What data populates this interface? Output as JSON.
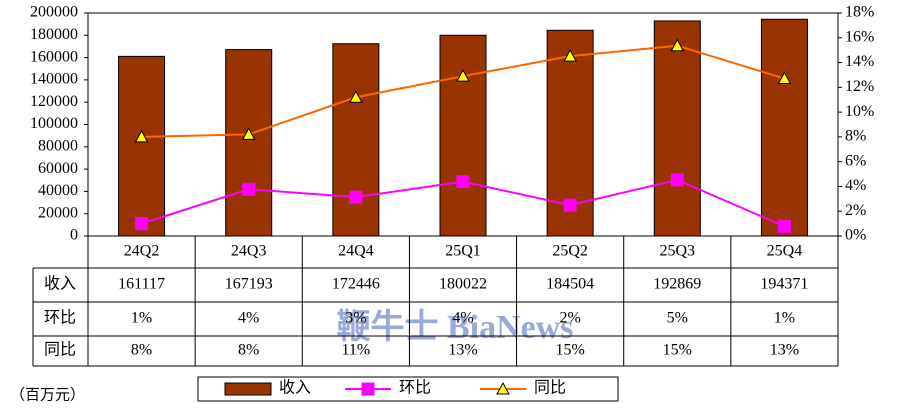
{
  "chart_data": {
    "type": "bar",
    "unit_note": "（百万元）",
    "watermark": "鞭牛士 BiaNews",
    "categories": [
      "24Q2",
      "24Q3",
      "24Q4",
      "25Q1",
      "25Q2",
      "25Q3",
      "25Q4"
    ],
    "series": [
      {
        "name": "收入",
        "type": "bar",
        "color": "#993300",
        "values": [
          161117,
          167193,
          172446,
          180022,
          184504,
          192869,
          194371
        ]
      },
      {
        "name": "环比",
        "type": "line",
        "marker": "square",
        "axis": "y2",
        "color": "#ff00ff",
        "marker_color": "#ff00ff",
        "values": [
          1.0,
          3.77,
          3.14,
          4.39,
          2.49,
          4.53,
          0.78
        ],
        "value_labels": [
          "1%",
          "4%",
          "3%",
          "4%",
          "2%",
          "5%",
          "1%"
        ]
      },
      {
        "name": "同比",
        "type": "line",
        "marker": "triangle",
        "axis": "y2",
        "color": "#ff6600",
        "marker_color": "#ffff00",
        "values": [
          8.0,
          8.2,
          11.2,
          12.9,
          14.52,
          15.36,
          12.71
        ],
        "value_labels": [
          "8%",
          "8%",
          "11%",
          "13%",
          "15%",
          "15%",
          "13%"
        ]
      }
    ],
    "ylim": [
      0,
      200000
    ],
    "yticks": [
      0,
      20000,
      40000,
      60000,
      80000,
      100000,
      120000,
      140000,
      160000,
      180000,
      200000
    ],
    "y2lim": [
      0,
      18
    ],
    "y2ticks": [
      {
        "value": 0,
        "label": "0%"
      },
      {
        "value": 2,
        "label": "2%"
      },
      {
        "value": 4,
        "label": "4%"
      },
      {
        "value": 6,
        "label": "6%"
      },
      {
        "value": 8,
        "label": "8%"
      },
      {
        "value": 10,
        "label": "10%"
      },
      {
        "value": 12,
        "label": "12%"
      },
      {
        "value": 14,
        "label": "14%"
      },
      {
        "value": 16,
        "label": "16%"
      },
      {
        "value": 18,
        "label": "18%"
      }
    ]
  }
}
